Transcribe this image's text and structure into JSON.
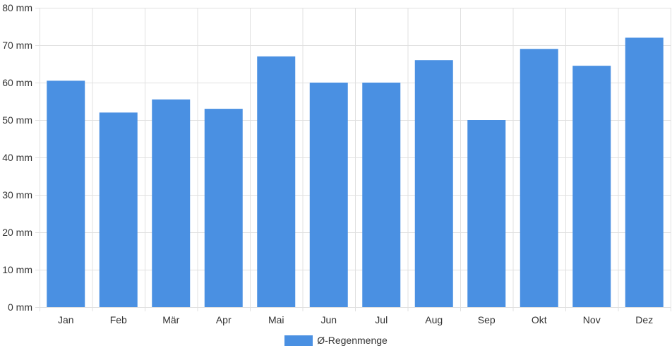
{
  "chart_data": {
    "type": "bar",
    "categories": [
      "Jan",
      "Feb",
      "Mär",
      "Apr",
      "Mai",
      "Jun",
      "Jul",
      "Aug",
      "Sep",
      "Okt",
      "Nov",
      "Dez"
    ],
    "series": [
      {
        "name": "Ø-Regenmenge",
        "values": [
          60.5,
          52,
          55.5,
          53,
          67,
          60,
          60,
          66,
          50,
          69,
          64.5,
          72
        ]
      }
    ],
    "ylim": [
      0,
      80
    ],
    "yticks": [
      0,
      10,
      20,
      30,
      40,
      50,
      60,
      70,
      80
    ],
    "yunit": "mm",
    "grid": true,
    "legend_position": "bottom",
    "colors": {
      "bar": "#4a90e2",
      "grid": "#e0e0e0",
      "text": "#333333"
    }
  }
}
